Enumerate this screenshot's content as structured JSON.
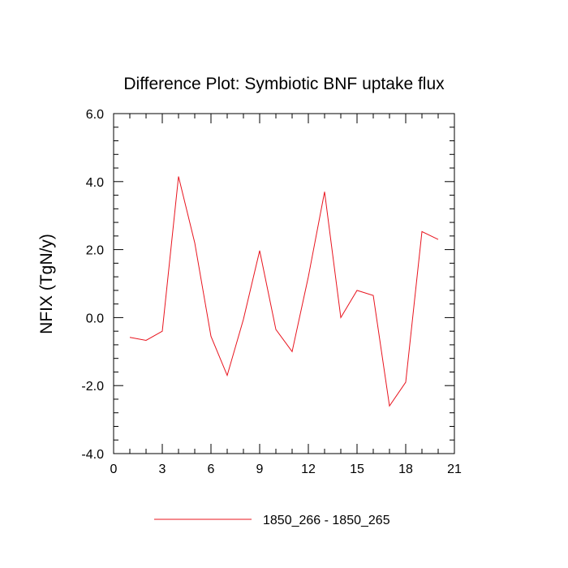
{
  "chart_data": {
    "type": "line",
    "title": "Difference Plot: Symbiotic BNF uptake flux",
    "xlabel": "",
    "ylabel": "NFIX  (TgN/y)",
    "xlim": [
      0,
      21
    ],
    "ylim": [
      -4.0,
      6.0
    ],
    "x_ticks": [
      0,
      3,
      6,
      9,
      12,
      15,
      18,
      21
    ],
    "x_tick_labels": [
      "0",
      "3",
      "6",
      "9",
      "12",
      "15",
      "18",
      "21"
    ],
    "y_ticks": [
      -4.0,
      -2.0,
      0.0,
      2.0,
      4.0,
      6.0
    ],
    "y_tick_labels": [
      "-4.0",
      "-2.0",
      "0.0",
      "2.0",
      "4.0",
      "6.0"
    ],
    "grid": false,
    "legend_position": "bottom-center",
    "series": [
      {
        "name": "1850_266 - 1850_265",
        "color": "#e8141e",
        "x": [
          1,
          2,
          3,
          4,
          5,
          6,
          7,
          8,
          9,
          10,
          11,
          12,
          13,
          14,
          15,
          16,
          17,
          18,
          19,
          20
        ],
        "values": [
          -0.58,
          -0.67,
          -0.4,
          4.15,
          2.2,
          -0.55,
          -1.7,
          -0.05,
          1.97,
          -0.35,
          -1.0,
          1.2,
          3.7,
          0.0,
          0.8,
          0.65,
          -2.6,
          -1.9,
          2.53,
          2.3
        ]
      }
    ]
  }
}
